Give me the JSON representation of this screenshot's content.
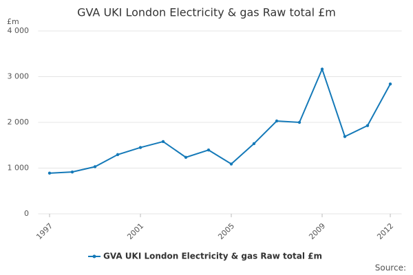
{
  "chart_data": {
    "type": "line",
    "title": "GVA UKI London Electricity & gas Raw total £m",
    "y_unit": "£m",
    "source": "Source:",
    "x": [
      1997,
      1998,
      1999,
      2000,
      2001,
      2002,
      2003,
      2004,
      2005,
      2006,
      2007,
      2008,
      2009,
      2010,
      2011,
      2012
    ],
    "series": [
      {
        "name": "GVA UKI London Electricity & gas Raw total £m",
        "color": "#1479b8",
        "values": [
          890,
          915,
          1030,
          1295,
          1450,
          1580,
          1235,
          1395,
          1090,
          1535,
          2030,
          2000,
          3165,
          1690,
          1930,
          2840
        ]
      }
    ],
    "xlim": [
      1996.5,
      2012.5
    ],
    "xticks": [
      1997,
      2001,
      2005,
      2009,
      2012
    ],
    "ylim": [
      0,
      4000
    ],
    "yticks": [
      0,
      {
        "value": 1000,
        "label": "1 000"
      },
      {
        "value": 2000,
        "label": "2 000"
      },
      {
        "value": 3000,
        "label": "3 000"
      },
      {
        "value": 4000,
        "label": "4 000"
      }
    ],
    "grid": true
  }
}
